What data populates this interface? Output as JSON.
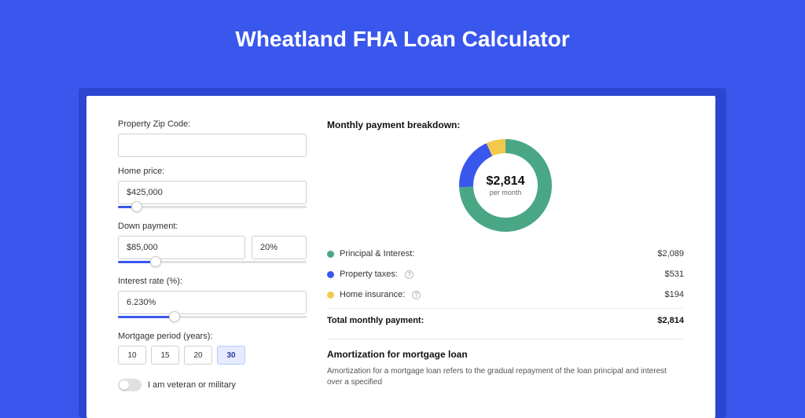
{
  "colors": {
    "page_bg": "#3957ed",
    "card_shadow": "#2b46d0",
    "card_bg": "#ffffff",
    "title_color": "#ffffff",
    "slider_fill": "#3957ed",
    "period_active_bg": "#e6ebff"
  },
  "title": "Wheatland FHA Loan Calculator",
  "form": {
    "zip": {
      "label": "Property Zip Code:",
      "value": ""
    },
    "home_price": {
      "label": "Home price:",
      "value": "$425,000",
      "slider_pct": 10
    },
    "down_payment": {
      "label": "Down payment:",
      "value": "$85,000",
      "pct_value": "20%",
      "slider_pct": 20
    },
    "interest_rate": {
      "label": "Interest rate (%):",
      "value": "6.230%",
      "slider_pct": 30
    },
    "mortgage_period": {
      "label": "Mortgage period (years):",
      "options": [
        "10",
        "15",
        "20",
        "30"
      ],
      "selected": "30"
    },
    "veteran": {
      "label": "I am veteran or military",
      "checked": false
    }
  },
  "breakdown": {
    "title": "Monthly payment breakdown:",
    "donut": {
      "center_value": "$2,814",
      "center_sub": "per month",
      "segments": [
        {
          "label": "Principal & Interest",
          "value": 2089,
          "display": "$2,089",
          "color": "#4aa786",
          "has_info": false
        },
        {
          "label": "Property taxes",
          "value": 531,
          "display": "$531",
          "color": "#3957ed",
          "has_info": true
        },
        {
          "label": "Home insurance",
          "value": 194,
          "display": "$194",
          "color": "#f2c94c",
          "has_info": true
        }
      ],
      "stroke_width": 18
    },
    "total": {
      "label": "Total monthly payment:",
      "value": "$2,814"
    }
  },
  "amortization": {
    "title": "Amortization for mortgage loan",
    "text": "Amortization for a mortgage loan refers to the gradual repayment of the loan principal and interest over a specified"
  }
}
